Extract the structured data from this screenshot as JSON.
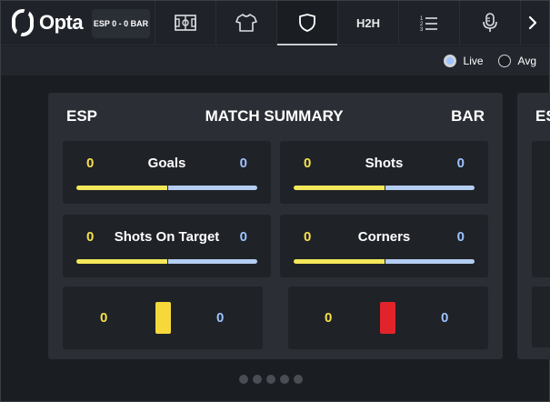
{
  "brand": {
    "name": "Opta"
  },
  "score": {
    "label": "ESP 0 - 0 BAR"
  },
  "nav": {
    "tabs": [
      {
        "id": "pitch",
        "icon": "pitch-icon"
      },
      {
        "id": "lineup",
        "icon": "shirt-icon"
      },
      {
        "id": "summary",
        "icon": "shield-icon",
        "active": true
      },
      {
        "id": "h2h",
        "label": "H2H"
      },
      {
        "id": "commentary",
        "icon": "list-icon"
      },
      {
        "id": "audio",
        "icon": "microphone-icon"
      }
    ],
    "next_icon": "chevron-right-icon"
  },
  "toggle": {
    "live_label": "Live",
    "avg_label": "Avg",
    "selected": "Live"
  },
  "summary": {
    "home": "ESP",
    "title": "MATCH SUMMARY",
    "away": "BAR",
    "next_card_peek": "ES",
    "stats": [
      {
        "label": "Goals",
        "home": "0",
        "away": "0",
        "home_share": 0.5
      },
      {
        "label": "Shots",
        "home": "0",
        "away": "0",
        "home_share": 0.5
      },
      {
        "label": "Shots On Target",
        "home": "0",
        "away": "0",
        "home_share": 0.5
      },
      {
        "label": "Corners",
        "home": "0",
        "away": "0",
        "home_share": 0.5
      }
    ],
    "cards": [
      {
        "type": "yellow-card-icon",
        "color": "#f6d83a",
        "home": "0",
        "away": "0"
      },
      {
        "type": "red-card-icon",
        "color": "#e3232a",
        "home": "0",
        "away": "0"
      }
    ]
  },
  "pagination": {
    "count": 5
  },
  "colors": {
    "home": "#f6e04b",
    "away": "#9ec2ff"
  }
}
